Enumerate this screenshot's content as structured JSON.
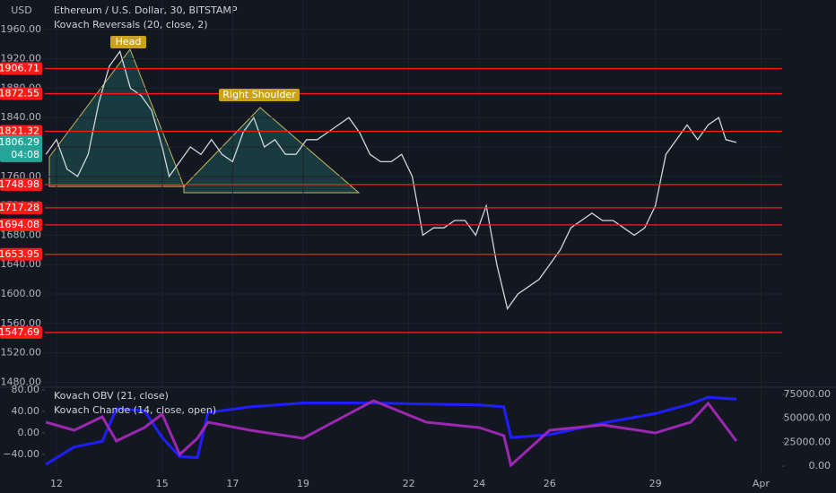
{
  "chart_data": [
    {
      "type": "line",
      "title": "Ethereum / U.S. Dollar, 30, BITSTAMP",
      "subtitle": "Kovach Reversals (20, close, 2)",
      "ylabel": "USD",
      "x": [
        11.7,
        12.0,
        12.3,
        12.6,
        12.9,
        13.2,
        13.5,
        13.8,
        14.1,
        14.4,
        14.7,
        15.0,
        15.2,
        15.5,
        15.8,
        16.1,
        16.4,
        16.7,
        17.0,
        17.3,
        17.6,
        17.9,
        18.2,
        18.5,
        18.8,
        19.1,
        19.4,
        19.7,
        20.0,
        20.3,
        20.6,
        20.9,
        21.2,
        21.5,
        21.8,
        22.1,
        22.4,
        22.7,
        23.0,
        23.3,
        23.6,
        23.9,
        24.2,
        24.5,
        24.8,
        25.1,
        25.4,
        25.7,
        26.0,
        26.3,
        26.6,
        26.9,
        27.2,
        27.5,
        27.8,
        28.1,
        28.4,
        28.7,
        29.0,
        29.3,
        29.6,
        29.9,
        30.2,
        30.5,
        30.8,
        31.0,
        31.3
      ],
      "color": "#d1d4dc",
      "values": [
        1790,
        1810,
        1770,
        1760,
        1790,
        1860,
        1910,
        1930,
        1880,
        1870,
        1850,
        1800,
        1760,
        1780,
        1800,
        1790,
        1810,
        1790,
        1780,
        1820,
        1840,
        1800,
        1810,
        1790,
        1790,
        1810,
        1810,
        1820,
        1830,
        1840,
        1820,
        1790,
        1780,
        1780,
        1790,
        1760,
        1680,
        1690,
        1690,
        1700,
        1700,
        1680,
        1720,
        1640,
        1580,
        1600,
        1610,
        1620,
        1640,
        1660,
        1690,
        1700,
        1710,
        1700,
        1700,
        1690,
        1680,
        1690,
        1720,
        1790,
        1810,
        1830,
        1810,
        1830,
        1840,
        1810,
        1806.29
      ],
      "xlim": [
        11.67,
        32.6
      ],
      "xticks": [
        12,
        15,
        17,
        19,
        22,
        24,
        26,
        29,
        {
          "value": 32,
          "label": "Apr"
        }
      ],
      "ylim": [
        1472,
        2000
      ],
      "yticks": [
        {
          "value": 1480,
          "label": "1480.00"
        },
        {
          "value": 1520,
          "label": "1520.00"
        },
        {
          "value": 1560,
          "label": "1560.00"
        },
        {
          "value": 1600,
          "label": "1600.00"
        },
        {
          "value": 1640,
          "label": "1640.00"
        },
        {
          "value": 1680,
          "label": "1680.00"
        },
        {
          "value": 1720,
          "label": "1720.00"
        },
        {
          "value": 1760,
          "label": "1760.00"
        },
        {
          "value": 1800,
          "label": "1800.00"
        },
        {
          "value": 1840,
          "label": "1840.00"
        },
        {
          "value": 1880,
          "label": "1880.00"
        },
        {
          "value": 1920,
          "label": "1920.00"
        },
        {
          "value": 1960,
          "label": "1960.00"
        }
      ],
      "levels": [
        1906.71,
        1872.55,
        1821.32,
        1748.98,
        1717.28,
        1694.08,
        1653.95,
        1547.69
      ],
      "level_color": "#ff1a1a",
      "current_price": 1806.29,
      "current_time": "04:08",
      "current_color": "#26a69a",
      "annotations": [
        "Head",
        "Right Shoulder"
      ]
    },
    {
      "type": "line",
      "x": [
        11.7,
        12.5,
        13.3,
        13.7,
        14.5,
        15.0,
        15.5,
        16.0,
        16.3,
        17.5,
        19.0,
        21.0,
        22.5,
        24.0,
        24.7,
        24.9,
        26.0,
        27.5,
        29.0,
        30.0,
        30.5,
        31.3
      ],
      "ylim": [
        -75,
        85
      ],
      "yticks": [
        {
          "value": 80,
          "label": "80.00"
        },
        {
          "value": 40,
          "label": "40.00"
        },
        {
          "value": 0,
          "label": "0.00"
        },
        {
          "value": -40,
          "label": "−40.00"
        }
      ],
      "y2lim": [
        -7400,
        82500
      ],
      "y2ticks": [
        {
          "value": 75000,
          "label": "75000.00"
        },
        {
          "value": 50000,
          "label": "50000.00"
        },
        {
          "value": 25000,
          "label": "25000.00"
        },
        {
          "value": 0,
          "label": "0.00"
        }
      ],
      "series": [
        {
          "name": "Kovach OBV (21, close)",
          "color": "#1e1eff",
          "axis": "y2",
          "values": [
            2000,
            20000,
            26000,
            60000,
            58000,
            30000,
            10000,
            9000,
            56000,
            62000,
            66000,
            66000,
            65000,
            64000,
            62000,
            30000,
            33000,
            45000,
            55000,
            65000,
            72000,
            70000
          ]
        },
        {
          "name": "Kovach Chande (14, close, open)",
          "color": "#9c27b0",
          "values": [
            20,
            5,
            30,
            -15,
            10,
            35,
            -40,
            -10,
            20,
            5,
            -10,
            60,
            20,
            10,
            -5,
            -60,
            5,
            15,
            0,
            20,
            55,
            -15
          ]
        }
      ]
    }
  ]
}
